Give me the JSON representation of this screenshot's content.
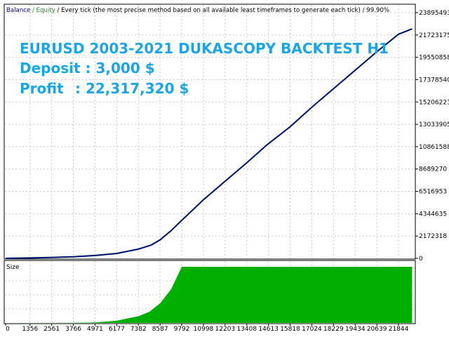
{
  "header": {
    "balance_label": "Balance",
    "sep1": " / ",
    "equity_label": "Equity",
    "sep2": " / ",
    "description": "Every tick (the most precise method based on all available least timeframes to generate each tick)",
    "sep3": " / ",
    "quality": "99.90%"
  },
  "annotations": {
    "line1": "EURUSD 2003-2021 DUKASCOPY BACKTEST  H1",
    "line2": "Deposit : 3,000 $",
    "line3_label": "Profit",
    "line3_value": ": 22,317,320 $"
  },
  "colors": {
    "balance": "#00008b",
    "equity": "#228b22",
    "size": "#00b000",
    "annotation": "#1aa6e6"
  },
  "chart_data": [
    {
      "type": "line",
      "title": "",
      "series": [
        {
          "name": "Balance",
          "x": [
            0,
            1356,
            2561,
            3766,
            4971,
            6177,
            7382,
            8100,
            8587,
            9200,
            9792,
            10998,
            12203,
            13408,
            14500,
            15818,
            17024,
            18229,
            19434,
            20639,
            21844,
            22600
          ],
          "values": [
            3000,
            40000,
            90000,
            160000,
            280000,
            480000,
            900000,
            1300000,
            1800000,
            2700000,
            3700000,
            5700000,
            7500000,
            9300000,
            11000000,
            12800000,
            14700000,
            16500000,
            18300000,
            20100000,
            21800000,
            22320000
          ]
        }
      ],
      "y_ticks": [
        "0",
        "2172318",
        "4344635",
        "6516953",
        "8689270",
        "10861588",
        "13033905",
        "15206223",
        "17378540",
        "19550858",
        "21723175",
        "23895493"
      ],
      "ylim": [
        0,
        23895493
      ],
      "xlim": [
        0,
        22700
      ],
      "grid": true
    },
    {
      "type": "area",
      "title": "",
      "panel_label": "Size",
      "series": [
        {
          "name": "Size",
          "x": [
            0,
            3766,
            4971,
            6177,
            7382,
            8000,
            8587,
            9200,
            9792,
            22600
          ],
          "values": [
            0,
            0.003,
            0.01,
            0.04,
            0.12,
            0.2,
            0.35,
            0.6,
            1.0,
            1.0
          ]
        }
      ],
      "x_ticks": [
        "0",
        "1356",
        "2561",
        "3766",
        "4971",
        "6177",
        "7382",
        "8587",
        "9792",
        "10998",
        "12203",
        "13408",
        "14613",
        "15818",
        "17024",
        "18229",
        "19434",
        "20639",
        "21844"
      ],
      "x_tick_values": [
        0,
        1356,
        2561,
        3766,
        4971,
        6177,
        7382,
        8587,
        9792,
        10998,
        12203,
        13408,
        14613,
        15818,
        17024,
        18229,
        19434,
        20639,
        21844
      ],
      "ylim": [
        0,
        1
      ],
      "xlim": [
        0,
        22700
      ],
      "grid": true
    }
  ]
}
